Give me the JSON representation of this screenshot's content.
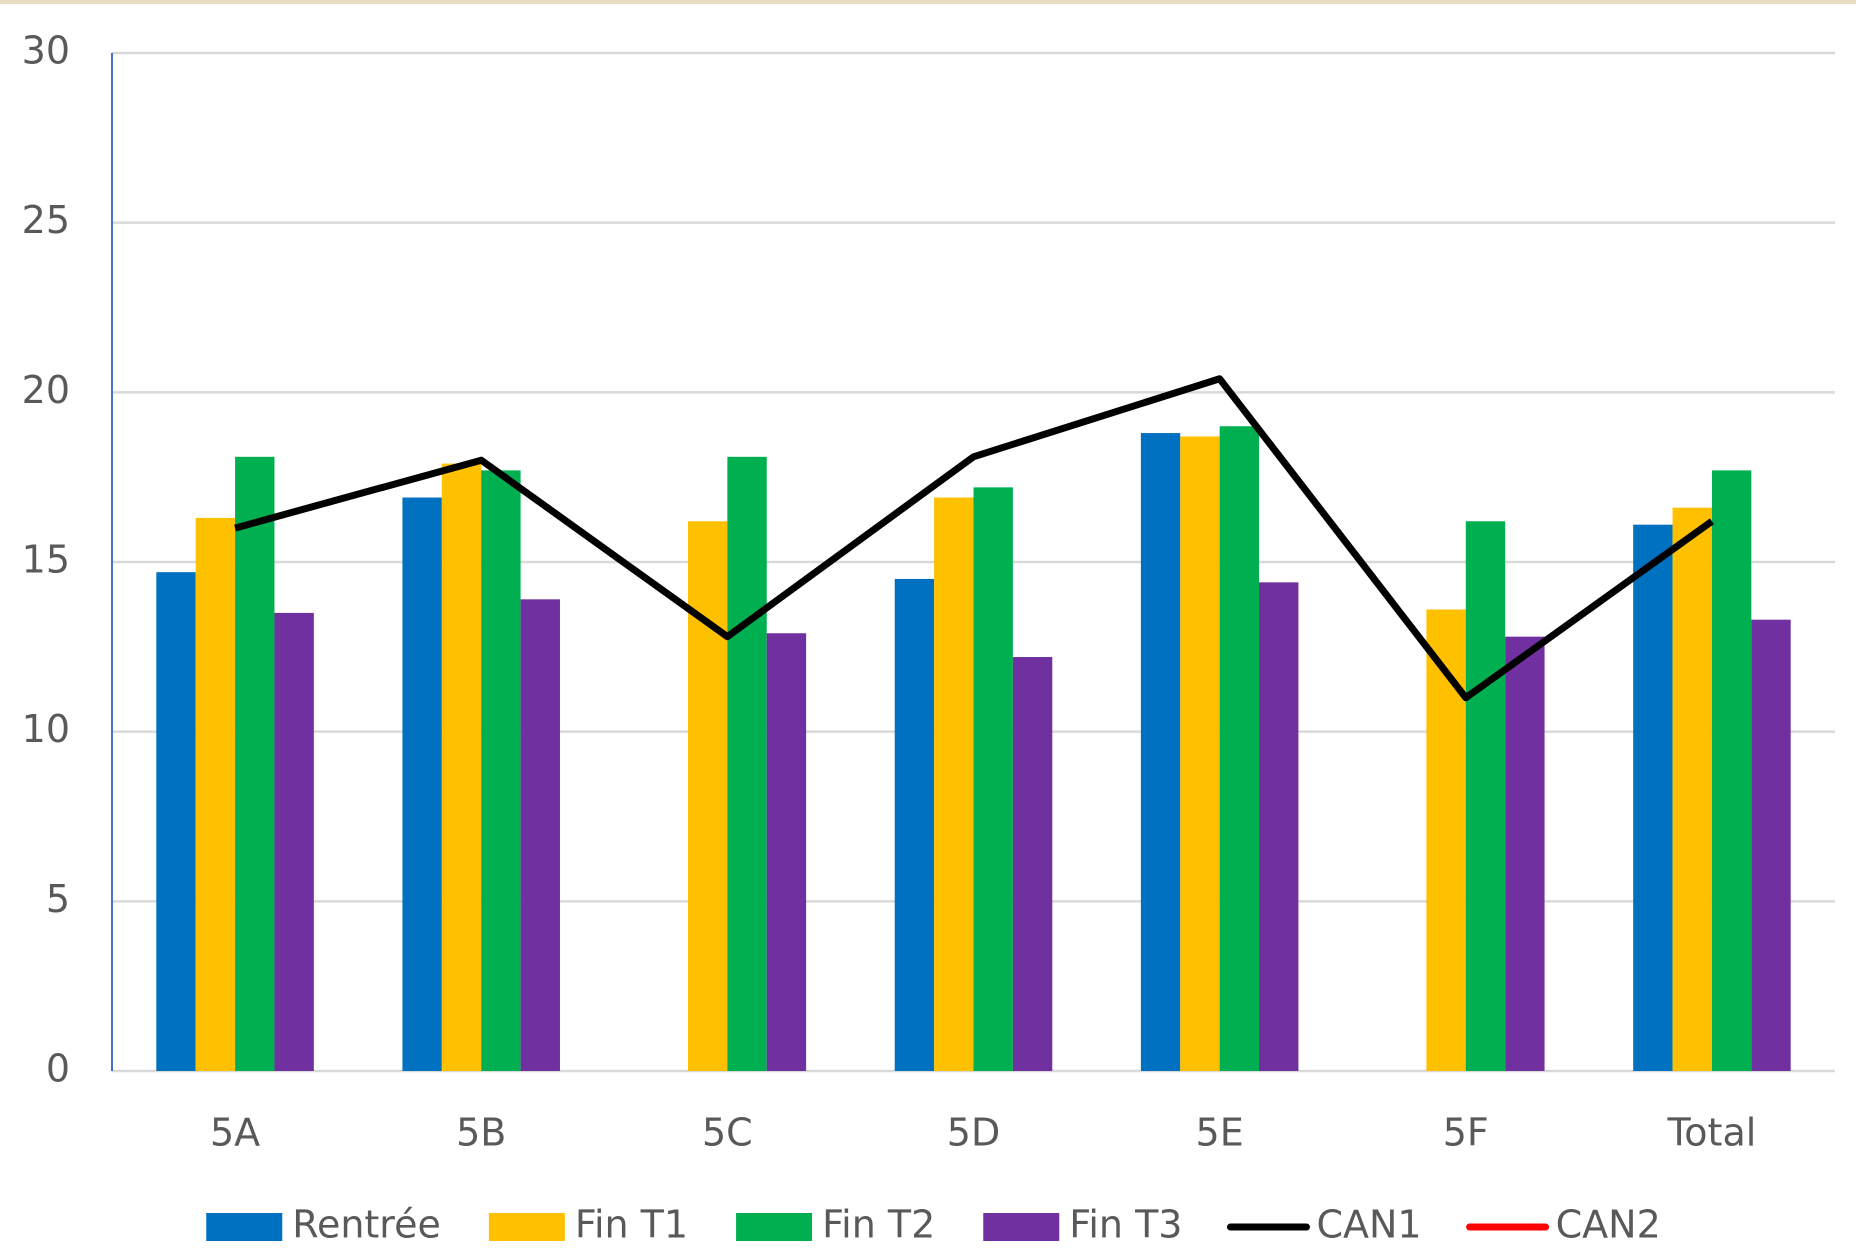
{
  "chart_data": {
    "type": "bar_line",
    "categories": [
      "5A",
      "5B",
      "5C",
      "5D",
      "5E",
      "5F",
      "Total"
    ],
    "series": [
      {
        "name": "Rentrée",
        "type": "bar",
        "color": "#0070c0",
        "values": [
          14.7,
          16.9,
          null,
          14.5,
          18.8,
          null,
          16.1
        ]
      },
      {
        "name": "Fin T1",
        "type": "bar",
        "color": "#ffc000",
        "values": [
          16.3,
          17.9,
          16.2,
          16.9,
          18.7,
          13.6,
          16.6
        ]
      },
      {
        "name": "Fin T2",
        "type": "bar",
        "color": "#00b050",
        "values": [
          18.1,
          17.7,
          18.1,
          17.2,
          19.0,
          16.2,
          17.7
        ]
      },
      {
        "name": "Fin T3",
        "type": "bar",
        "color": "#7030a0",
        "values": [
          13.5,
          13.9,
          12.9,
          12.2,
          14.4,
          12.8,
          13.3
        ]
      },
      {
        "name": "CAN1",
        "type": "line",
        "color": "#000000",
        "values": [
          16.0,
          18.0,
          12.8,
          18.1,
          20.4,
          11.0,
          16.2
        ]
      },
      {
        "name": "CAN2",
        "type": "line",
        "color": "#ff0000",
        "values": [
          null,
          null,
          null,
          null,
          null,
          null,
          null
        ]
      }
    ],
    "ylim": [
      0,
      30
    ],
    "yticks": [
      0,
      5,
      10,
      15,
      20,
      25,
      30
    ],
    "grid": true,
    "legend": "bottom"
  }
}
